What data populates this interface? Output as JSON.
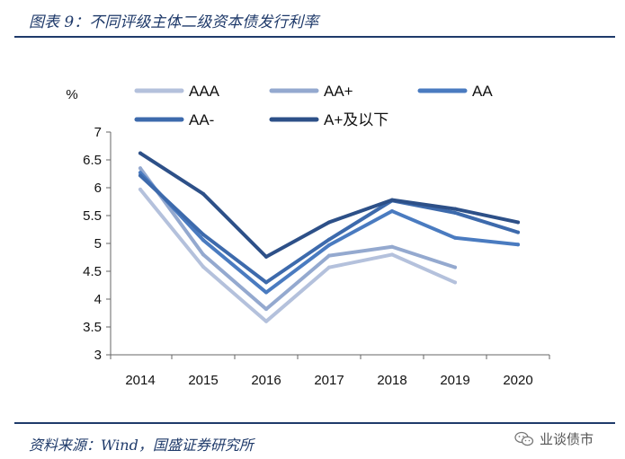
{
  "header": {
    "title": "图表 9：不同评级主体二级资本债发行利率"
  },
  "footer": {
    "source": "资料来源：Wind，国盛证券研究所",
    "watermark": "业谈债市",
    "watermark_icon": "wechat-icon"
  },
  "chart_data": {
    "type": "line",
    "title": "图表 9：不同评级主体二级资本债发行利率",
    "ylabel": "%",
    "xlabel": "",
    "categories": [
      "2014",
      "2015",
      "2016",
      "2017",
      "2018",
      "2019",
      "2020"
    ],
    "ylim": [
      3,
      7
    ],
    "yticks": [
      "3",
      "3.5",
      "4",
      "4.5",
      "5",
      "5.5",
      "6",
      "6.5",
      "7"
    ],
    "grid": false,
    "legend": "top",
    "series": [
      {
        "name": "AAA",
        "color": "#b4c1dc",
        "values": [
          5.97,
          4.58,
          3.6,
          4.57,
          4.8,
          4.3,
          null
        ]
      },
      {
        "name": "AA+",
        "color": "#94a9cf",
        "values": [
          6.35,
          4.8,
          3.82,
          4.78,
          4.94,
          4.57,
          null
        ]
      },
      {
        "name": "AA",
        "color": "#4a7bc0",
        "values": [
          6.27,
          5.06,
          4.12,
          4.97,
          5.58,
          5.1,
          4.98
        ]
      },
      {
        "name": "AA-",
        "color": "#3d6aac",
        "values": [
          6.22,
          5.16,
          4.3,
          5.07,
          5.77,
          5.55,
          5.2
        ]
      },
      {
        "name": "A+及以下",
        "color": "#2d5088",
        "values": [
          6.62,
          5.89,
          4.76,
          5.38,
          5.78,
          5.62,
          5.38
        ]
      }
    ]
  }
}
